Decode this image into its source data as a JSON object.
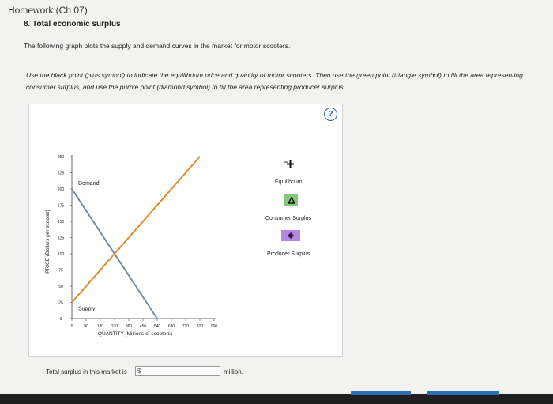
{
  "header": {
    "title": "Homework (Ch 07)"
  },
  "question": {
    "title": "8. Total economic surplus",
    "intro": "The following graph plots the supply and demand curves in the market for motor scooters.",
    "instructions": "Use the black point (plus symbol) to indicate the equilibrium price and quantity of motor scooters. Then use the green point (triangle symbol) to fill the area representing consumer surplus, and use the purple point (diamond symbol) to fill the area representing producer surplus."
  },
  "help_icon": {
    "glyph": "?"
  },
  "chart_data": {
    "type": "line",
    "xlabel": "QUANTITY (Millions of scooters)",
    "ylabel": "PRICE (Dollars per scooter)",
    "xlim": [
      0,
      900
    ],
    "ylim": [
      0,
      250
    ],
    "x_ticks": [
      0,
      90,
      180,
      270,
      360,
      450,
      540,
      630,
      720,
      810,
      900
    ],
    "y_ticks": [
      0,
      25,
      50,
      75,
      100,
      125,
      150,
      175,
      200,
      225,
      250
    ],
    "series": [
      {
        "name": "Demand",
        "color": "#6f8fa8",
        "points": [
          [
            0,
            200
          ],
          [
            540,
            0
          ]
        ]
      },
      {
        "name": "Supply",
        "color": "#e08a2c",
        "points": [
          [
            0,
            25
          ],
          [
            810,
            250
          ]
        ]
      }
    ]
  },
  "tools": [
    {
      "label": "Equilibrium",
      "symbol": "plus",
      "color": "#111111"
    },
    {
      "label": "Consumer Surplus",
      "symbol": "triangle",
      "color": "#86c67a"
    },
    {
      "label": "Producer Surplus",
      "symbol": "diamond",
      "color": "#b388e0"
    }
  ],
  "answer": {
    "label": "Total surplus in this market is",
    "prefix": "$",
    "unit": "million."
  }
}
